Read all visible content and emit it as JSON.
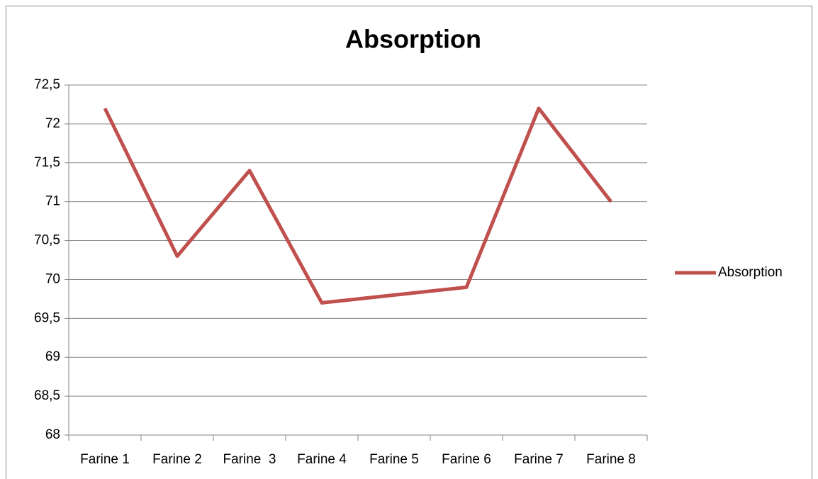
{
  "chart_data": {
    "type": "line",
    "title": "Absorption",
    "categories": [
      "Farine 1",
      "Farine 2",
      "Farine  3",
      "Farine 4",
      "Farine 5",
      "Farine 6",
      "Farine 7",
      "Farine 8"
    ],
    "series": [
      {
        "name": "Absorption",
        "color": "#c0504d",
        "values": [
          72.2,
          70.3,
          71.4,
          69.7,
          69.8,
          69.9,
          72.2,
          71.0
        ]
      }
    ],
    "ylim": [
      68,
      72.5
    ],
    "yticks": [
      68,
      {
        "value": 68.5,
        "label": "68,5"
      },
      69,
      {
        "value": 69.5,
        "label": "69,5"
      },
      70,
      {
        "value": 70.5,
        "label": "70,5"
      },
      71,
      {
        "value": 71.5,
        "label": "71,5"
      },
      72,
      {
        "value": 72.5,
        "label": "72,5"
      }
    ],
    "grid": true,
    "legend": "right"
  }
}
